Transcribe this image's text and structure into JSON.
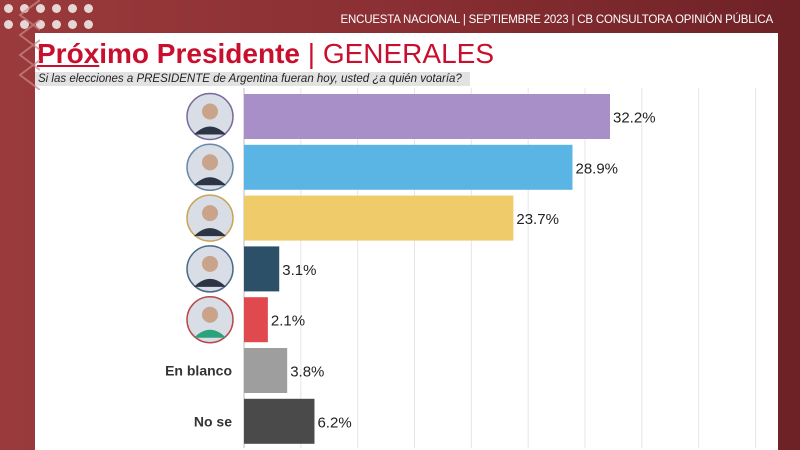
{
  "header": {
    "text": "ENCUESTA NACIONAL | SEPTIEMBRE  2023 | CB CONSULTORA OPINIÓN PÚBLICA"
  },
  "title": {
    "underlined": "Próx",
    "bold_rest": "imo Presidente",
    "separator": " | ",
    "light": "GENERALES"
  },
  "chart_data": {
    "type": "bar",
    "orientation": "horizontal",
    "title": "Próximo Presidente | GENERALES",
    "subtitle": "Si las elecciones a PRESIDENTE de Argentina fueran hoy, usted ¿a quién votaría?",
    "categories": [
      "candidate-1",
      "candidate-2",
      "candidate-3",
      "candidate-4",
      "candidate-5",
      "En blanco",
      "No se"
    ],
    "labels": [
      "",
      "",
      "",
      "",
      "",
      "En blanco",
      "No se"
    ],
    "values": [
      32.2,
      28.9,
      23.7,
      3.1,
      2.1,
      3.8,
      6.2
    ],
    "data_labels": [
      "32.2%",
      "28.9%",
      "23.7%",
      "3.1%",
      "2.1%",
      "3.8%",
      "6.2%"
    ],
    "colors": [
      "#a98fc8",
      "#5bb5e4",
      "#efcb6a",
      "#2b5068",
      "#e04a4e",
      "#9e9e9e",
      "#4a4a4a"
    ],
    "xlim": [
      0,
      45
    ],
    "grid": true
  }
}
